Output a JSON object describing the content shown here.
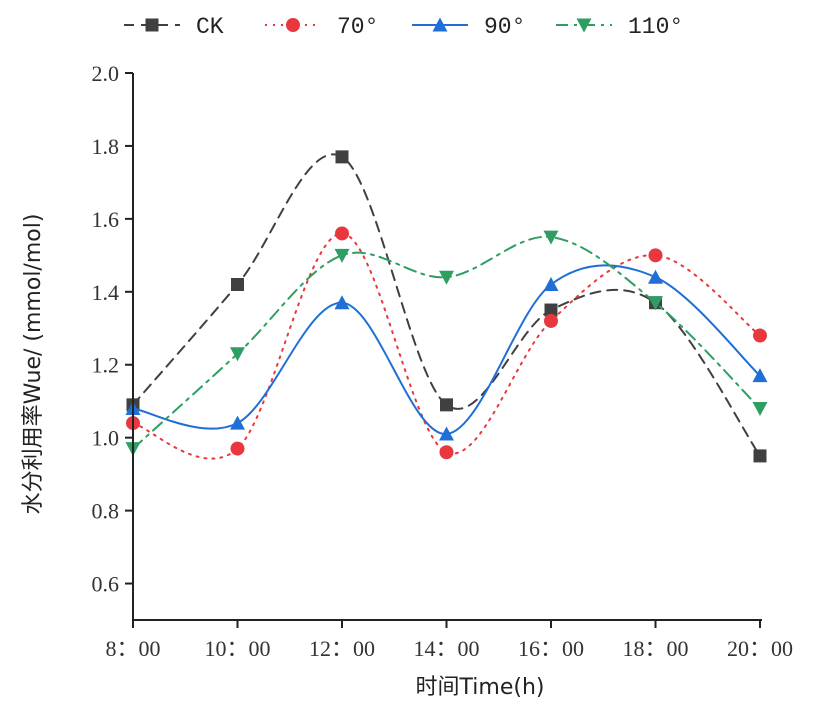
{
  "chart_data": {
    "type": "line",
    "xlabel": "时间Time(h)",
    "ylabel": "水分利用率Wue/ (mmol/mol)",
    "x": [
      "8：00",
      "10：00",
      "12：00",
      "14：00",
      "16：00",
      "18：00",
      "20：00"
    ],
    "ylim": [
      0.5,
      2.0
    ],
    "yticks": [
      "0.6",
      "0.8",
      "1.0",
      "1.2",
      "1.4",
      "1.6",
      "1.8",
      "2.0"
    ],
    "grid": false,
    "legend_position": "top",
    "series": [
      {
        "name": "CK",
        "marker": "square",
        "line": "dash",
        "color": "#404040",
        "values": [
          1.09,
          1.42,
          1.77,
          1.09,
          1.35,
          1.37,
          0.95
        ]
      },
      {
        "name": "70°",
        "marker": "circle",
        "line": "dot",
        "color": "#e8383d",
        "values": [
          1.04,
          0.97,
          1.56,
          0.96,
          1.32,
          1.5,
          1.28
        ]
      },
      {
        "name": "90°",
        "marker": "triangle-up",
        "line": "solid",
        "color": "#1f6fd6",
        "values": [
          1.08,
          1.04,
          1.37,
          1.01,
          1.42,
          1.44,
          1.17
        ]
      },
      {
        "name": "110°",
        "marker": "triangle-down",
        "line": "dashdot",
        "color": "#2e9e62",
        "values": [
          0.97,
          1.23,
          1.5,
          1.44,
          1.55,
          1.37,
          1.08
        ]
      }
    ]
  }
}
